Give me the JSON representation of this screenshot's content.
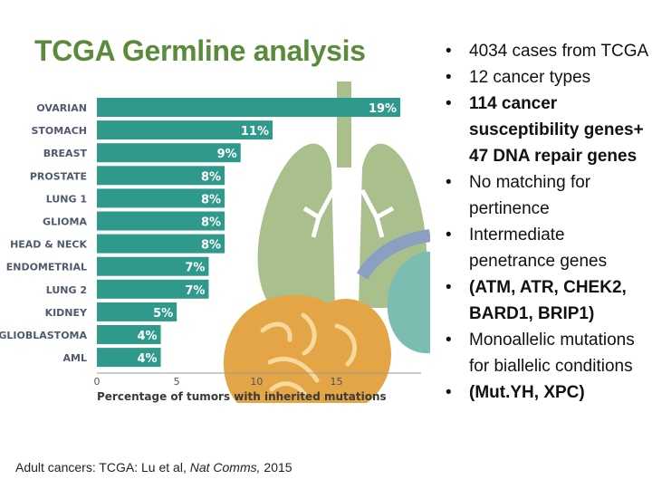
{
  "slide": {
    "title": "TCGA Germline analysis",
    "citation": {
      "prefix": "Adult cancers: TCGA: Lu et al, ",
      "journal": "Nat Comms,",
      "year": " 2015"
    }
  },
  "bullets": [
    {
      "text": "4034 cases from TCGA",
      "bold": false
    },
    {
      "text": "12 cancer types",
      "bold": false
    },
    {
      "text": "114 cancer susceptibility genes+ 47 DNA repair genes",
      "bold": true
    },
    {
      "text": "No matching for pertinence",
      "bold": false
    },
    {
      "text": "Intermediate penetrance genes",
      "bold": false
    },
    {
      "text": "(ATM, ATR, CHEK2, BARD1, BRIP1)",
      "bold": true
    },
    {
      "text": "Monoallelic mutations for biallelic conditions",
      "bold": false
    },
    {
      "text": "(Mut.YH, XPC)",
      "bold": true
    }
  ],
  "chart_data": {
    "type": "bar",
    "orientation": "horizontal",
    "categories": [
      "OVARIAN",
      "STOMACH",
      "BREAST",
      "PROSTATE",
      "LUNG 1",
      "GLIOMA",
      "HEAD & NECK",
      "ENDOMETRIAL",
      "LUNG 2",
      "KIDNEY",
      "GLIOBLASTOMA",
      "AML"
    ],
    "values": [
      19,
      11,
      9,
      8,
      8,
      8,
      8,
      7,
      7,
      5,
      4,
      4
    ],
    "value_labels": [
      "19%",
      "11%",
      "9%",
      "8%",
      "8%",
      "8%",
      "8%",
      "7%",
      "7%",
      "5%",
      "4%",
      "4%"
    ],
    "xlabel": "Percentage of tumors with inherited mutations",
    "ylabel": "",
    "xticks": [
      "0",
      "5",
      "10",
      "15"
    ],
    "xlim": [
      0,
      20.3
    ],
    "bar_color": "#2f9a8b",
    "grid": false,
    "background": "organ illustration: lungs, brain, kidney"
  }
}
